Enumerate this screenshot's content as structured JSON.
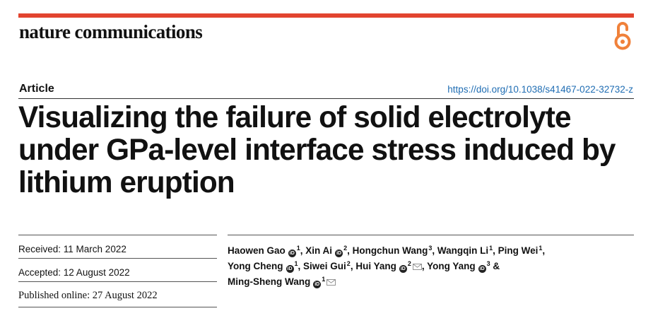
{
  "journal": {
    "name": "nature communications"
  },
  "article": {
    "section": "Article",
    "doi": "https://doi.org/10.1038/s41467-022-32732-z",
    "title_lines": [
      "Visualizing the failure of solid electrolyte",
      "under GPa-level interface stress induced by",
      "lithium eruption"
    ]
  },
  "dates": {
    "received": "Received: 11 March 2022",
    "accepted": "Accepted: 12 August 2022",
    "published": "Published online: 27 August 2022"
  },
  "authors": [
    {
      "name": "Haowen Gao",
      "orcid": true,
      "aff": "1",
      "sep": ", "
    },
    {
      "name": "Xin Ai",
      "orcid": true,
      "aff": "2",
      "sep": ", "
    },
    {
      "name": "Hongchun Wang",
      "orcid": false,
      "aff": "3",
      "sep": ", "
    },
    {
      "name": "Wangqin Li",
      "orcid": false,
      "aff": "1",
      "sep": ", "
    },
    {
      "name": "Ping Wei",
      "orcid": false,
      "aff": "1",
      "sep": ","
    },
    {
      "name": "Yong Cheng",
      "orcid": true,
      "aff": "1",
      "sep": ", "
    },
    {
      "name": "Siwei Gui",
      "orcid": false,
      "aff": "2",
      "sep": ", "
    },
    {
      "name": "Hui Yang",
      "orcid": true,
      "aff": "2",
      "mail": true,
      "sep": ", "
    },
    {
      "name": "Yong Yang",
      "orcid": true,
      "aff": "3",
      "sep": " &"
    },
    {
      "name": "Ming-Sheng Wang",
      "orcid": true,
      "aff": "1",
      "mail": true,
      "sep": ""
    }
  ],
  "icons": {
    "open_access": "open-access-icon",
    "orcid": "orcid-icon",
    "email": "mail-icon"
  },
  "colors": {
    "accent_bar": "#e2442f",
    "open_access": "#f0813a",
    "link": "#1f6db3"
  }
}
